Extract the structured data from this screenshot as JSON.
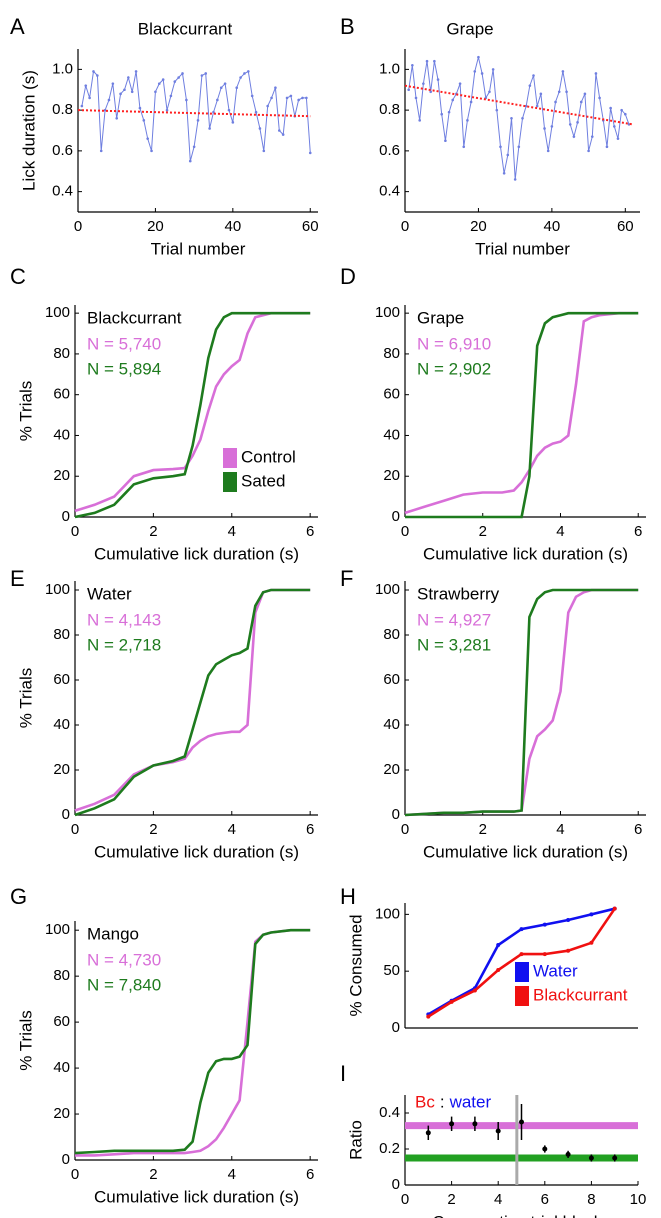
{
  "chart_data": [
    {
      "type": "line",
      "label": "A",
      "title": "Blackcurrant",
      "ylabel": "Lick duration (s)",
      "xlabel": "Trial number",
      "xlim": [
        0,
        62
      ],
      "ylim": [
        0.3,
        1.1
      ],
      "xticks": [
        0,
        20,
        40,
        60
      ],
      "yticks": [
        0.4,
        0.6,
        0.8,
        {
          "value": 1,
          "label": "1.0"
        }
      ],
      "x": [
        1,
        2,
        3,
        4,
        5,
        6,
        7,
        8,
        9,
        10,
        11,
        12,
        13,
        14,
        15,
        16,
        17,
        18,
        19,
        20,
        21,
        22,
        23,
        24,
        25,
        26,
        27,
        28,
        29,
        30,
        31,
        32,
        33,
        34,
        35,
        36,
        37,
        38,
        39,
        40,
        41,
        42,
        43,
        44,
        45,
        46,
        47,
        48,
        49,
        50,
        51,
        52,
        53,
        54,
        55,
        56,
        57,
        58,
        59,
        60
      ],
      "series": [
        {
          "color": "#6f7fe0",
          "values": [
            0.82,
            0.92,
            0.86,
            0.99,
            0.97,
            0.6,
            0.8,
            0.85,
            0.93,
            0.76,
            0.88,
            0.9,
            0.96,
            0.89,
            0.99,
            0.81,
            0.75,
            0.66,
            0.6,
            0.89,
            0.93,
            0.95,
            0.8,
            0.87,
            0.94,
            0.96,
            0.98,
            0.85,
            0.55,
            0.62,
            0.75,
            0.97,
            0.98,
            0.71,
            0.79,
            0.85,
            0.91,
            0.93,
            0.8,
            0.74,
            0.91,
            0.96,
            0.98,
            0.99,
            0.87,
            0.79,
            0.71,
            0.6,
            0.82,
            0.86,
            0.91,
            0.7,
            0.68,
            0.86,
            0.87,
            0.77,
            0.85,
            0.86,
            0.86,
            0.59
          ]
        }
      ],
      "trend": {
        "color": "#ff2020",
        "x": [
          0,
          60
        ],
        "values": [
          0.8,
          0.77
        ]
      }
    },
    {
      "type": "line",
      "label": "B",
      "title": "Grape",
      "xlabel": "Trial number",
      "xlim": [
        0,
        64
      ],
      "ylim": [
        0.3,
        1.1
      ],
      "xticks": [
        0,
        20,
        40,
        60
      ],
      "yticks": [
        0.4,
        0.6,
        0.8,
        {
          "value": 1,
          "label": "1.0"
        }
      ],
      "x": [
        1,
        2,
        3,
        4,
        5,
        6,
        7,
        8,
        9,
        10,
        11,
        12,
        13,
        14,
        15,
        16,
        17,
        18,
        19,
        20,
        21,
        22,
        23,
        24,
        25,
        26,
        27,
        28,
        29,
        30,
        31,
        32,
        33,
        34,
        35,
        36,
        37,
        38,
        39,
        40,
        41,
        42,
        43,
        44,
        45,
        46,
        47,
        48,
        49,
        50,
        51,
        52,
        53,
        54,
        55,
        56,
        57,
        58,
        59,
        60,
        61
      ],
      "series": [
        {
          "color": "#6f7fe0",
          "values": [
            0.9,
            1.02,
            0.86,
            0.75,
            0.93,
            1.04,
            0.89,
            1.04,
            0.95,
            0.78,
            0.65,
            0.79,
            0.85,
            0.88,
            0.93,
            0.62,
            0.75,
            0.84,
            0.99,
            1.06,
            0.98,
            0.86,
            0.89,
            1.0,
            0.8,
            0.62,
            0.49,
            0.58,
            0.76,
            0.46,
            0.62,
            0.76,
            0.82,
            0.92,
            0.97,
            0.82,
            0.88,
            0.71,
            0.6,
            0.72,
            0.84,
            0.89,
            0.99,
            0.89,
            0.73,
            0.67,
            0.74,
            0.84,
            0.88,
            0.6,
            0.67,
            0.98,
            0.86,
            0.75,
            0.62,
            0.81,
            0.72,
            0.66,
            0.8,
            0.78,
            0.73
          ]
        }
      ],
      "trend": {
        "color": "#ff2020",
        "x": [
          0,
          62
        ],
        "values": [
          0.92,
          0.73
        ]
      }
    },
    {
      "type": "line",
      "label": "C",
      "title": "Blackcurrant",
      "ylabel": "% Trials",
      "xlabel": "Cumulative lick duration (s)",
      "legend": true,
      "xlim": [
        0,
        6.2
      ],
      "ylim": [
        0,
        104
      ],
      "xticks": [
        0,
        2,
        4,
        6
      ],
      "yticks": [
        0,
        20,
        40,
        60,
        80,
        100
      ],
      "x": [
        0,
        0.5,
        1,
        1.5,
        2,
        2.5,
        2.8,
        3,
        3.2,
        3.4,
        3.6,
        3.8,
        4,
        4.2,
        4.4,
        4.6,
        4.8,
        5,
        5.5,
        6
      ],
      "series": [
        {
          "name": "Control",
          "color": "#d86fd8",
          "annotation": "N = 5,740",
          "values": [
            3,
            6,
            10,
            20,
            23,
            23.5,
            24,
            30,
            38,
            52,
            64,
            70,
            74,
            77,
            90,
            98,
            99,
            100,
            100,
            100
          ]
        },
        {
          "name": "Sated",
          "color": "#1e7b1e",
          "annotation": "N = 5,894",
          "values": [
            0,
            2,
            6,
            16,
            19,
            20,
            21,
            35,
            55,
            78,
            92,
            98,
            100,
            100,
            100,
            100,
            100,
            100,
            100,
            100
          ]
        }
      ]
    },
    {
      "type": "line",
      "label": "D",
      "title": "Grape",
      "xlabel": "Cumulative lick duration (s)",
      "xlim": [
        0,
        6.2
      ],
      "ylim": [
        0,
        104
      ],
      "xticks": [
        0,
        2,
        4,
        6
      ],
      "yticks": [
        0,
        20,
        40,
        60,
        80,
        100
      ],
      "x": [
        0,
        0.5,
        1,
        1.5,
        2,
        2.5,
        2.8,
        3,
        3.2,
        3.4,
        3.6,
        3.8,
        4,
        4.2,
        4.4,
        4.6,
        4.8,
        5,
        5.5,
        6
      ],
      "series": [
        {
          "color": "#d86fd8",
          "annotation": "N = 6,910",
          "values": [
            2,
            5,
            8,
            11,
            12,
            12,
            13,
            17,
            23,
            30,
            34,
            36,
            37,
            40,
            65,
            96,
            98,
            99,
            100,
            100
          ]
        },
        {
          "color": "#1e7b1e",
          "annotation": "N = 2,902",
          "values": [
            0,
            0,
            0,
            0,
            0,
            0,
            0,
            0,
            20,
            84,
            95,
            98,
            99,
            100,
            100,
            100,
            100,
            100,
            100,
            100
          ]
        }
      ]
    },
    {
      "type": "line",
      "label": "E",
      "title": "Water",
      "ylabel": "% Trials",
      "xlabel": "Cumulative lick duration (s)",
      "xlim": [
        0,
        6.2
      ],
      "ylim": [
        0,
        104
      ],
      "xticks": [
        0,
        2,
        4,
        6
      ],
      "yticks": [
        0,
        20,
        40,
        60,
        80,
        100
      ],
      "x": [
        0,
        0.5,
        1,
        1.5,
        2,
        2.5,
        2.8,
        3,
        3.2,
        3.4,
        3.6,
        3.8,
        4,
        4.2,
        4.4,
        4.6,
        4.8,
        5,
        5.5,
        6
      ],
      "series": [
        {
          "color": "#d86fd8",
          "annotation": "N = 4,143",
          "values": [
            2,
            5,
            9,
            18,
            22,
            23.5,
            25,
            30,
            33,
            35,
            36,
            36.5,
            37,
            37,
            40,
            90,
            99,
            100,
            100,
            100
          ]
        },
        {
          "color": "#1e7b1e",
          "annotation": "N = 2,718",
          "values": [
            0,
            3,
            7,
            17,
            22,
            24,
            26,
            38,
            50,
            62,
            67,
            69,
            71,
            72,
            74,
            93,
            99,
            100,
            100,
            100
          ]
        }
      ]
    },
    {
      "type": "line",
      "label": "F",
      "title": "Strawberry",
      "xlabel": "Cumulative lick duration (s)",
      "xlim": [
        0,
        6.2
      ],
      "ylim": [
        0,
        104
      ],
      "xticks": [
        0,
        2,
        4,
        6
      ],
      "yticks": [
        0,
        20,
        40,
        60,
        80,
        100
      ],
      "x": [
        0,
        0.5,
        1,
        1.5,
        2,
        2.5,
        2.8,
        3,
        3.2,
        3.4,
        3.6,
        3.8,
        4,
        4.2,
        4.4,
        4.6,
        4.8,
        5,
        5.5,
        6
      ],
      "series": [
        {
          "color": "#d86fd8",
          "annotation": "N = 4,927",
          "values": [
            0,
            0.5,
            1,
            1,
            1.5,
            1.5,
            1.5,
            2,
            25,
            35,
            38,
            42,
            55,
            90,
            97,
            99,
            100,
            100,
            100,
            100
          ]
        },
        {
          "color": "#1e7b1e",
          "annotation": "N = 3,281",
          "values": [
            0,
            0.5,
            1,
            1,
            1.5,
            1.5,
            1.5,
            2,
            88,
            96,
            99,
            100,
            100,
            100,
            100,
            100,
            100,
            100,
            100,
            100
          ]
        }
      ]
    },
    {
      "type": "line",
      "label": "G",
      "title": "Mango",
      "ylabel": "% Trials",
      "xlabel": "Cumulative lick duration (s)",
      "xlim": [
        0,
        6.2
      ],
      "ylim": [
        0,
        104
      ],
      "xticks": [
        0,
        2,
        4,
        6
      ],
      "yticks": [
        0,
        20,
        40,
        60,
        80,
        100
      ],
      "x": [
        0,
        0.5,
        1,
        1.5,
        2,
        2.5,
        2.8,
        3,
        3.2,
        3.4,
        3.6,
        3.8,
        4,
        4.2,
        4.4,
        4.6,
        4.8,
        5,
        5.5,
        6
      ],
      "series": [
        {
          "color": "#d86fd8",
          "annotation": "N = 4,730",
          "values": [
            2,
            2,
            2.5,
            3,
            3,
            3,
            3,
            3.5,
            4,
            6,
            9,
            14,
            20,
            26,
            60,
            95,
            98,
            99,
            100,
            100
          ]
        },
        {
          "color": "#1e7b1e",
          "annotation": "N = 7,840",
          "values": [
            3,
            3.5,
            4,
            4,
            4,
            4,
            4.5,
            8,
            25,
            38,
            43,
            44,
            44,
            45,
            50,
            94,
            98,
            99,
            100,
            100
          ]
        }
      ]
    },
    {
      "type": "line",
      "label": "H",
      "ylabel": "% Consumed",
      "legend": true,
      "xlim": [
        0,
        10
      ],
      "ylim": [
        0,
        110
      ],
      "yticks": [
        0,
        50,
        100
      ],
      "x": [
        1,
        2,
        3,
        4,
        5,
        6,
        7,
        8,
        9
      ],
      "series": [
        {
          "name": "Water",
          "color": "#1010f0",
          "values": [
            12,
            24,
            35,
            73,
            87,
            91,
            95,
            100,
            105
          ]
        },
        {
          "name": "Blackcurrant",
          "color": "#f01010",
          "values": [
            10,
            23,
            33,
            51,
            65,
            65,
            68,
            75,
            105
          ]
        }
      ]
    },
    {
      "type": "errorbar",
      "label": "I",
      "ylabel": "Ratio",
      "xlabel": "Consecutive trial blocks",
      "xlim": [
        0,
        10
      ],
      "ylim": [
        0,
        0.5
      ],
      "xticks": [
        0,
        2,
        4,
        6,
        8,
        10
      ],
      "yticks": [
        0,
        0.2,
        0.4
      ],
      "annotation_parts": [
        {
          "text": "Bc",
          "color": "#f01010"
        },
        {
          "text": ":",
          "color": "#000000"
        },
        {
          "text": "water",
          "color": "#1010f0"
        }
      ],
      "reference_lines": [
        {
          "value": 0.33,
          "color": "#d86fd8"
        },
        {
          "value": 0.15,
          "color": "#22a022"
        }
      ],
      "marker_x": 4.8,
      "x": [
        1,
        2,
        3,
        4,
        5,
        6,
        7,
        8,
        9
      ],
      "series": [
        {
          "color": "#000000",
          "values": [
            0.29,
            0.34,
            0.34,
            0.3,
            0.35,
            0.2,
            0.17,
            0.15,
            0.15
          ],
          "errors": [
            0.04,
            0.04,
            0.04,
            0.05,
            0.1,
            0.02,
            0.02,
            0.02,
            0.02
          ]
        }
      ]
    }
  ]
}
